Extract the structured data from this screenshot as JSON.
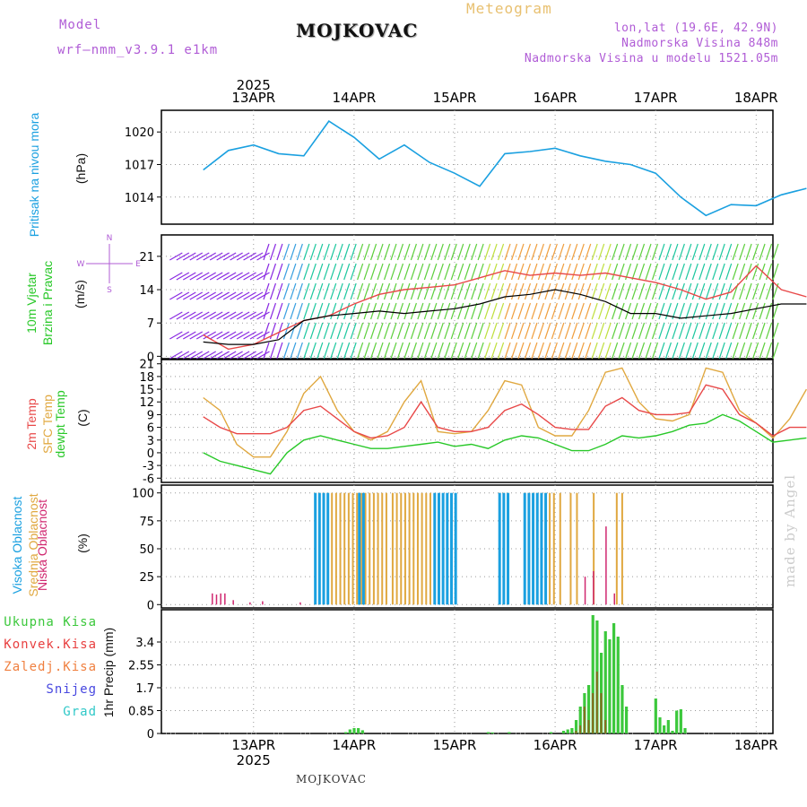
{
  "header": {
    "model_label": "Model",
    "model_name": "wrf—nmm_v3.9.1  e1km",
    "title": "MOJKOVAC",
    "subtitle": "Meteogram",
    "lonlat": "lon,lat (19.6E, 42.9N)",
    "elevation": "Nadmorska Visina 848m",
    "model_elevation": "Nadmorska Visina u modelu 1521.05m",
    "footer": "MOJKOVAC",
    "watermark": "made by Angel"
  },
  "time_axis": {
    "year": "2025",
    "top_labels": [
      "13APR",
      "14APR",
      "15APR",
      "16APR",
      "17APR",
      "18APR"
    ],
    "bottom_labels": [
      "13APR",
      "14APR",
      "15APR",
      "16APR",
      "17APR",
      "18APR"
    ]
  },
  "panel_labels": {
    "pressure_name": "Pritisak na nivou mora",
    "pressure_unit": "(hPa)",
    "wind_line1": "10m Vjetar",
    "wind_line2": "Brzina i Pravac",
    "wind_unit": "(m/s)",
    "compass_n": "N",
    "compass_w": "W",
    "compass_e": "E",
    "compass_s": "S",
    "temp_2m": "2m Temp",
    "temp_sfc": "SFC Temp",
    "temp_dew": "dewpt Temp",
    "temp_unit": "(C)",
    "cloud_high": "Visoka Oblacnost",
    "cloud_mid": "Srednja Oblacnost",
    "cloud_low": "Niska Oblacnost",
    "cloud_unit": "(%)",
    "precip_unit": "1hr Precip (mm)"
  },
  "precip_legend": [
    {
      "label": "Ukupna  Kisa",
      "color": "#3cc83c"
    },
    {
      "label": "Konvek.Kisa",
      "color": "#e84040"
    },
    {
      "label": "Zaledj.Kisa",
      "color": "#f08040"
    },
    {
      "label": "Snijeg",
      "color": "#4848e0"
    },
    {
      "label": "Grad",
      "color": "#30c8c8"
    }
  ],
  "colors": {
    "pressure": "#1aa0e0",
    "temp_2m": "#e84848",
    "temp_sfc": "#e0a840",
    "dewpt": "#28c828",
    "cloud_high": "#1aa0e0",
    "cloud_mid": "#e0a840",
    "cloud_low": "#d02870",
    "precip_total": "#3cc83c",
    "wind_speed_line": "#000000",
    "wind_gust_line": "#e84848"
  },
  "chart_data": [
    {
      "type": "line",
      "name": "pressure",
      "ylabel": "(hPa)",
      "ylim": [
        1011.5,
        1022.0
      ],
      "yticks": [
        1014,
        1017,
        1020
      ],
      "x": [
        0,
        6,
        12,
        18,
        24,
        30,
        36,
        42,
        48,
        54,
        60,
        66,
        72,
        78,
        84,
        90,
        96,
        102,
        108,
        114,
        120,
        126,
        132,
        138,
        144
      ],
      "series": [
        {
          "values": [
            1016.5,
            1018.3,
            1018.8,
            1018.0,
            1017.8,
            1021.0,
            1019.5,
            1017.5,
            1018.8,
            1017.2,
            1016.2,
            1015.0,
            1018.0,
            1018.2,
            1018.5,
            1017.8,
            1017.3,
            1017.0,
            1016.2,
            1014.0,
            1012.3,
            1013.3,
            1013.2,
            1014.2,
            1014.8
          ]
        }
      ]
    },
    {
      "type": "line",
      "name": "wind",
      "ylabel": "(m/s)",
      "ylim": [
        -0.5,
        25.5
      ],
      "yticks": [
        0,
        7,
        14,
        21
      ],
      "x": [
        0,
        6,
        12,
        18,
        24,
        30,
        36,
        42,
        48,
        54,
        60,
        66,
        72,
        78,
        84,
        90,
        96,
        102,
        108,
        114,
        120,
        126,
        132,
        138,
        144
      ],
      "series": [
        {
          "values": [
            3.0,
            2.5,
            2.5,
            3.5,
            7.5,
            8.5,
            9.0,
            9.5,
            9.0,
            9.5,
            10.0,
            11.0,
            12.5,
            13.0,
            14.0,
            13.0,
            11.5,
            9.0,
            9.0,
            8.0,
            8.5,
            9.0,
            10.0,
            11.0,
            11.0
          ]
        },
        {
          "values": [
            4.5,
            1.5,
            2.5,
            5.0,
            7.5,
            8.5,
            11.0,
            13.0,
            14.0,
            14.5,
            15.0,
            16.5,
            18.0,
            17.0,
            17.5,
            17.0,
            17.5,
            16.5,
            15.5,
            14.0,
            12.0,
            13.5,
            19.0,
            14.0,
            12.5
          ]
        }
      ]
    },
    {
      "type": "line",
      "name": "temperature",
      "ylabel": "(C)",
      "ylim": [
        -7,
        22
      ],
      "yticks": [
        -6,
        -3,
        0,
        3,
        6,
        9,
        12,
        15,
        18,
        21
      ],
      "x": [
        0,
        4,
        8,
        12,
        16,
        20,
        24,
        28,
        32,
        36,
        40,
        44,
        48,
        52,
        56,
        60,
        64,
        68,
        72,
        76,
        80,
        84,
        88,
        92,
        96,
        100,
        104,
        108,
        112,
        116,
        120,
        124,
        128,
        132,
        136,
        140,
        144
      ],
      "series": [
        {
          "name": "2m Temp",
          "values": [
            8.5,
            6,
            4.5,
            4.5,
            4.5,
            6,
            10,
            11,
            8,
            5,
            3.5,
            4,
            6,
            12,
            6,
            5,
            5,
            6,
            10,
            11.5,
            9,
            6,
            5.5,
            5.5,
            11,
            13,
            10,
            9,
            9,
            9.5,
            16,
            15,
            9,
            7,
            4,
            6,
            6
          ]
        },
        {
          "name": "SFC Temp",
          "values": [
            13,
            10,
            2,
            -1,
            -1,
            5,
            14,
            18,
            10,
            5,
            3,
            5,
            12,
            17,
            5,
            4.5,
            5,
            10,
            17,
            16,
            6,
            4,
            4,
            10,
            19,
            20,
            12,
            8,
            7.5,
            9,
            20,
            19,
            10,
            7,
            3.5,
            8,
            15
          ]
        },
        {
          "name": "dewpt Temp",
          "values": [
            0,
            -2,
            -3,
            -4,
            -5,
            0,
            3,
            4,
            3,
            2,
            1,
            1,
            1.5,
            2,
            2.5,
            1.5,
            2,
            1,
            3,
            4,
            3.5,
            2,
            0.5,
            0.5,
            2,
            4,
            3.5,
            4,
            5,
            6.5,
            7,
            9,
            7.5,
            5,
            2.5,
            3,
            3.5
          ]
        }
      ]
    },
    {
      "type": "bar",
      "name": "cloud_cover",
      "ylabel": "(%)",
      "ylim": [
        -3,
        107
      ],
      "yticks": [
        0,
        25,
        50,
        75,
        100
      ],
      "high_cloud_blocks": [
        [
          26,
          29.5
        ],
        [
          36.5,
          38.5
        ],
        [
          54.5,
          60
        ],
        [
          70,
          73
        ],
        [
          76,
          82
        ]
      ],
      "mid_cloud_blocks": [
        [
          26.5,
          44
        ],
        [
          45,
          54.5
        ],
        [
          70.5,
          73
        ],
        [
          76.5,
          84
        ],
        [
          85,
          86
        ],
        [
          87.5,
          88.5
        ],
        [
          89,
          90
        ],
        [
          93,
          94
        ],
        [
          98.5,
          99.5
        ],
        [
          99.8,
          100.8
        ]
      ],
      "low_cloud_spikes": [
        [
          2,
          10
        ],
        [
          3,
          9
        ],
        [
          4,
          10
        ],
        [
          5,
          10
        ],
        [
          7,
          4
        ],
        [
          11,
          2
        ],
        [
          14,
          3
        ],
        [
          23,
          2
        ],
        [
          91,
          25
        ],
        [
          93,
          30
        ],
        [
          96,
          70
        ],
        [
          98,
          10
        ]
      ]
    },
    {
      "type": "bar",
      "name": "precipitation",
      "ylabel": "1hr Precip (mm)",
      "ylim": [
        0,
        4.6
      ],
      "yticks": [
        0,
        0.85,
        1.7,
        2.55,
        3.4
      ],
      "x": [
        34,
        35,
        36,
        37,
        38,
        68,
        69,
        73,
        83,
        86,
        87,
        88,
        89,
        90,
        91,
        92,
        93,
        94,
        95,
        96,
        97,
        98,
        99,
        100,
        101,
        108,
        109,
        110,
        111,
        112,
        113,
        114,
        115
      ],
      "values": [
        0.05,
        0.15,
        0.2,
        0.2,
        0.12,
        0.05,
        0.04,
        0.05,
        0.05,
        0.1,
        0.15,
        0.2,
        0.5,
        1.0,
        1.5,
        1.8,
        4.4,
        4.2,
        3.0,
        3.8,
        3.5,
        4.1,
        3.6,
        1.8,
        1.0,
        1.3,
        0.6,
        0.3,
        0.5,
        0.1,
        0.85,
        0.9,
        0.2
      ],
      "convective": [
        0,
        0,
        0,
        0,
        0,
        0,
        0,
        0,
        0,
        0,
        0,
        0,
        0.1,
        0.3,
        1.0,
        0.5,
        1.5,
        2.3,
        1.5,
        0.5,
        0,
        0,
        0,
        0,
        0,
        0,
        0,
        0,
        0,
        0,
        0,
        0,
        0
      ]
    }
  ]
}
